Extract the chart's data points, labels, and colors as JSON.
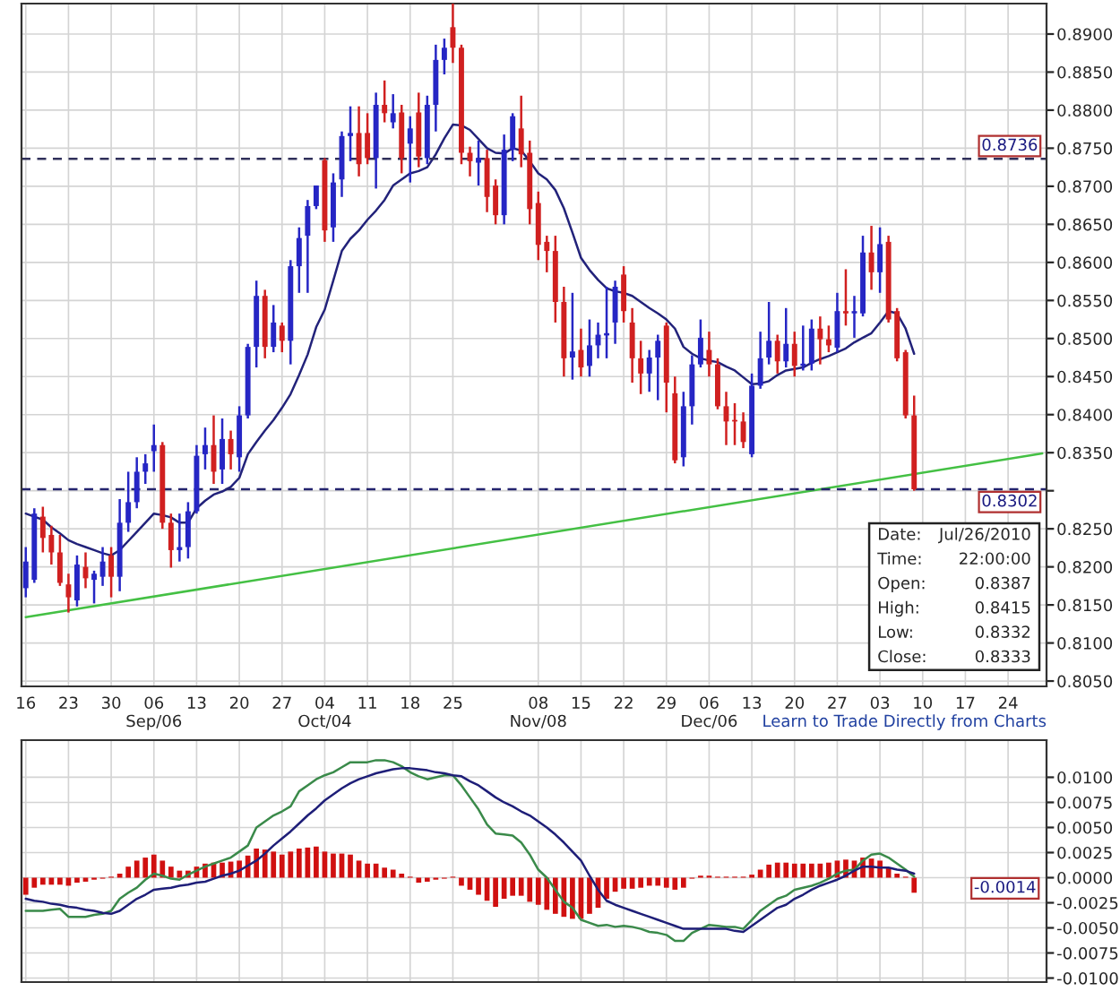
{
  "chart_data": [
    {
      "type": "candlestick",
      "categories": [
        "16",
        null,
        null,
        null,
        null,
        "23",
        null,
        null,
        null,
        null,
        "30",
        null,
        null,
        null,
        null,
        "06\nSep/06",
        null,
        null,
        null,
        null,
        "13",
        null,
        null,
        null,
        null,
        "20",
        null,
        null,
        null,
        null,
        "27",
        null,
        null,
        null,
        null,
        "04\nOct/04",
        null,
        null,
        null,
        null,
        "11",
        null,
        null,
        null,
        null,
        "18",
        null,
        null,
        null,
        null,
        "25",
        null,
        null,
        null,
        null,
        null,
        null,
        null,
        null,
        null,
        "08\nNov/08",
        null,
        null,
        null,
        null,
        "15",
        null,
        null,
        null,
        null,
        "22",
        null,
        null,
        null,
        null,
        "29",
        null,
        null,
        null,
        null,
        "06\nDec/06",
        null,
        null,
        null,
        null,
        "13",
        null,
        null,
        null,
        null,
        "20",
        null,
        null,
        null,
        null,
        "27",
        null,
        null,
        null,
        null,
        "03",
        null,
        null,
        null,
        null,
        "10",
        null,
        null,
        null,
        null,
        "17",
        null,
        null,
        null,
        null,
        "24",
        null,
        null,
        null,
        null
      ],
      "ohlc": [
        [
          0.8172,
          0.8226,
          0.816,
          0.8207
        ],
        [
          0.8183,
          0.8277,
          0.8179,
          0.827
        ],
        [
          0.8266,
          0.8279,
          0.8219,
          0.8238
        ],
        [
          0.8242,
          0.8254,
          0.8203,
          0.8219
        ],
        [
          0.8219,
          0.8242,
          0.8175,
          0.8179
        ],
        [
          0.8177,
          0.8191,
          0.814,
          0.816
        ],
        [
          0.8156,
          0.8215,
          0.8148,
          0.8203
        ],
        [
          0.82,
          0.8219,
          0.8172,
          0.8185
        ],
        [
          0.8183,
          0.8195,
          0.8152,
          0.8191
        ],
        [
          0.8187,
          0.8226,
          0.8175,
          0.8207
        ],
        [
          0.8215,
          0.8226,
          0.816,
          0.8187
        ],
        [
          0.8187,
          0.8289,
          0.8168,
          0.8258
        ],
        [
          0.8258,
          0.8325,
          0.8246,
          0.8285
        ],
        [
          0.8285,
          0.8344,
          0.8277,
          0.8325
        ],
        [
          0.8325,
          0.8348,
          0.8309,
          0.8336
        ],
        [
          0.8352,
          0.8387,
          0.8325,
          0.836
        ],
        [
          0.836,
          0.8364,
          0.825,
          0.8258
        ],
        [
          0.8258,
          0.827,
          0.8199,
          0.8222
        ],
        [
          0.8222,
          0.827,
          0.8207,
          0.8226
        ],
        [
          0.8226,
          0.8285,
          0.8211,
          0.8273
        ],
        [
          0.8273,
          0.836,
          0.827,
          0.8346
        ],
        [
          0.8348,
          0.8383,
          0.8328,
          0.836
        ],
        [
          0.836,
          0.8399,
          0.8309,
          0.8325
        ],
        [
          0.8328,
          0.8395,
          0.8309,
          0.8368
        ],
        [
          0.8368,
          0.8379,
          0.8328,
          0.8348
        ],
        [
          0.8344,
          0.8411,
          0.8325,
          0.8399
        ],
        [
          0.8399,
          0.8493,
          0.8395,
          0.8489
        ],
        [
          0.8489,
          0.8576,
          0.8462,
          0.8556
        ],
        [
          0.8556,
          0.8564,
          0.8474,
          0.8489
        ],
        [
          0.8489,
          0.8544,
          0.8482,
          0.8521
        ],
        [
          0.8517,
          0.8521,
          0.8482,
          0.8497
        ],
        [
          0.8497,
          0.8603,
          0.8466,
          0.8595
        ],
        [
          0.8595,
          0.8646,
          0.856,
          0.8632
        ],
        [
          0.8635,
          0.8682,
          0.856,
          0.8674
        ],
        [
          0.8674,
          0.8701,
          0.867,
          0.8701
        ],
        [
          0.8734,
          0.8737,
          0.8627,
          0.8642
        ],
        [
          0.8646,
          0.8717,
          0.8627,
          0.8705
        ],
        [
          0.8709,
          0.8772,
          0.8686,
          0.8766
        ],
        [
          0.8766,
          0.8805,
          0.8733,
          0.877
        ],
        [
          0.877,
          0.8805,
          0.8713,
          0.8729
        ],
        [
          0.877,
          0.8796,
          0.8729,
          0.8737
        ],
        [
          0.8737,
          0.8823,
          0.8697,
          0.8807
        ],
        [
          0.8807,
          0.8839,
          0.8784,
          0.8796
        ],
        [
          0.8784,
          0.8821,
          0.8776,
          0.8796
        ],
        [
          0.8797,
          0.8807,
          0.8717,
          0.8737
        ],
        [
          0.8756,
          0.8792,
          0.8705,
          0.8776
        ],
        [
          0.8797,
          0.8823,
          0.8725,
          0.8739
        ],
        [
          0.8737,
          0.8819,
          0.8729,
          0.8807
        ],
        [
          0.8807,
          0.8886,
          0.8772,
          0.8866
        ],
        [
          0.8866,
          0.8894,
          0.8847,
          0.8882
        ],
        [
          0.8909,
          0.8941,
          0.8862,
          0.8882
        ],
        [
          0.8882,
          0.8886,
          0.8729,
          0.8744
        ],
        [
          0.8744,
          0.8752,
          0.8713,
          0.8733
        ],
        [
          0.8731,
          0.876,
          0.8701,
          0.8737
        ],
        [
          0.8737,
          0.8748,
          0.8666,
          0.8686
        ],
        [
          0.8701,
          0.8709,
          0.865,
          0.8662
        ],
        [
          0.8662,
          0.8768,
          0.865,
          0.8748
        ],
        [
          0.8748,
          0.8796,
          0.8733,
          0.8792
        ],
        [
          0.8776,
          0.8819,
          0.8725,
          0.8742
        ],
        [
          0.8744,
          0.876,
          0.865,
          0.867
        ],
        [
          0.8678,
          0.8693,
          0.8603,
          0.8623
        ],
        [
          0.8627,
          0.8635,
          0.8587,
          0.8615
        ],
        [
          0.8615,
          0.8635,
          0.8521,
          0.8548
        ],
        [
          0.8548,
          0.8568,
          0.845,
          0.8474
        ],
        [
          0.8475,
          0.856,
          0.8446,
          0.8483
        ],
        [
          0.8485,
          0.8513,
          0.845,
          0.8462
        ],
        [
          0.8464,
          0.8525,
          0.845,
          0.8491
        ],
        [
          0.8491,
          0.8521,
          0.8474,
          0.8505
        ],
        [
          0.8504,
          0.8568,
          0.8474,
          0.8507
        ],
        [
          0.8521,
          0.8576,
          0.8493,
          0.8568
        ],
        [
          0.8584,
          0.8595,
          0.8521,
          0.8536
        ],
        [
          0.8521,
          0.854,
          0.8442,
          0.8474
        ],
        [
          0.8474,
          0.8497,
          0.8427,
          0.8454
        ],
        [
          0.8454,
          0.8485,
          0.843,
          0.8475
        ],
        [
          0.8475,
          0.8505,
          0.8419,
          0.8497
        ],
        [
          0.8517,
          0.8521,
          0.8403,
          0.8442
        ],
        [
          0.8428,
          0.845,
          0.8336,
          0.834
        ],
        [
          0.8344,
          0.843,
          0.8332,
          0.8411
        ],
        [
          0.8411,
          0.8478,
          0.8387,
          0.8466
        ],
        [
          0.8466,
          0.8525,
          0.8462,
          0.8501
        ],
        [
          0.8485,
          0.8509,
          0.845,
          0.8466
        ],
        [
          0.8466,
          0.8474,
          0.8407,
          0.8411
        ],
        [
          0.8411,
          0.843,
          0.836,
          0.8391
        ],
        [
          0.8393,
          0.8415,
          0.836,
          0.8391
        ],
        [
          0.8391,
          0.8403,
          0.8356,
          0.8364
        ],
        [
          0.8348,
          0.8454,
          0.8344,
          0.8438
        ],
        [
          0.8438,
          0.8509,
          0.8434,
          0.8474
        ],
        [
          0.8475,
          0.8548,
          0.8466,
          0.8497
        ],
        [
          0.8497,
          0.8505,
          0.8454,
          0.847
        ],
        [
          0.847,
          0.854,
          0.8462,
          0.8493
        ],
        [
          0.8493,
          0.8509,
          0.845,
          0.8464
        ],
        [
          0.8464,
          0.8517,
          0.8458,
          0.8467
        ],
        [
          0.8467,
          0.8525,
          0.8458,
          0.8513
        ],
        [
          0.8513,
          0.8529,
          0.8466,
          0.8499
        ],
        [
          0.8499,
          0.8517,
          0.8482,
          0.8491
        ],
        [
          0.8488,
          0.856,
          0.8482,
          0.8536
        ],
        [
          0.8536,
          0.8591,
          0.8517,
          0.8533
        ],
        [
          0.8533,
          0.8556,
          0.8501,
          0.8536
        ],
        [
          0.8533,
          0.8635,
          0.8529,
          0.8613
        ],
        [
          0.8613,
          0.8648,
          0.8564,
          0.8587
        ],
        [
          0.8587,
          0.8646,
          0.856,
          0.8624
        ],
        [
          0.8627,
          0.8635,
          0.8521,
          0.8525
        ],
        [
          0.8536,
          0.854,
          0.847,
          0.8474
        ],
        [
          0.8482,
          0.8485,
          0.8395,
          0.8399
        ],
        [
          0.8399,
          0.8425,
          0.83,
          0.8302
        ],
        null,
        null,
        null,
        null,
        null,
        null,
        null,
        null,
        null,
        null,
        null,
        null,
        null,
        null,
        null
      ],
      "colors": [
        "#2626c4",
        "#2626c4",
        "#d02020",
        "#d02020",
        "#d02020",
        "#d02020",
        "#2626c4",
        "#d02020",
        "#2626c4",
        "#2626c4",
        "#d02020",
        "#2626c4",
        "#2626c4",
        "#2626c4",
        "#2626c4",
        "#2626c4",
        "#d02020",
        "#d02020",
        "#2626c4",
        "#2626c4",
        "#2626c4",
        "#2626c4",
        "#d02020",
        "#2626c4",
        "#d02020",
        "#2626c4",
        "#2626c4",
        "#2626c4",
        "#d02020",
        "#2626c4",
        "#d02020",
        "#2626c4",
        "#2626c4",
        "#2626c4",
        "#2626c4",
        "#d02020",
        "#2626c4",
        "#2626c4",
        "#2626c4",
        "#d02020",
        "#d02020",
        "#2626c4",
        "#d02020",
        "#2626c4",
        "#d02020",
        "#2626c4",
        "#d02020",
        "#2626c4",
        "#2626c4",
        "#2626c4",
        "#d02020",
        "#d02020",
        "#d02020",
        "#2626c4",
        "#d02020",
        "#d02020",
        "#2626c4",
        "#2626c4",
        "#d02020",
        "#d02020",
        "#d02020",
        "#d02020",
        "#d02020",
        "#d02020",
        "#2626c4",
        "#d02020",
        "#2626c4",
        "#2626c4",
        "#2626c4",
        "#2626c4",
        "#d02020",
        "#d02020",
        "#d02020",
        "#2626c4",
        "#2626c4",
        "#d02020",
        "#d02020",
        "#2626c4",
        "#2626c4",
        "#2626c4",
        "#d02020",
        "#d02020",
        "#d02020",
        "#d02020",
        "#d02020",
        "#2626c4",
        "#2626c4",
        "#2626c4",
        "#d02020",
        "#2626c4",
        "#d02020",
        "#2626c4",
        "#2626c4",
        "#d02020",
        "#d02020",
        "#2626c4",
        "#d02020",
        "#2626c4",
        "#2626c4",
        "#d02020",
        "#2626c4",
        "#d02020",
        "#d02020",
        "#d02020",
        "#d02020",
        null,
        null,
        null,
        null,
        null,
        null,
        null,
        null,
        null,
        null,
        null,
        null,
        null,
        null,
        null
      ],
      "series": [
        {
          "type": "line",
          "color": "#22227a",
          "values": [
            0.827,
            0.8266,
            0.8262,
            0.8252,
            0.8244,
            0.8235,
            0.823,
            0.8226,
            0.8222,
            0.8218,
            0.8215,
            0.8222,
            0.8234,
            0.8246,
            0.8258,
            0.827,
            0.8268,
            0.8265,
            0.8258,
            0.8258,
            0.8277,
            0.8287,
            0.8295,
            0.8299,
            0.8305,
            0.8317,
            0.8348,
            0.8364,
            0.8379,
            0.8393,
            0.8409,
            0.8427,
            0.8452,
            0.8479,
            0.8515,
            0.8538,
            0.8576,
            0.8615,
            0.8631,
            0.8642,
            0.8656,
            0.8668,
            0.8682,
            0.8701,
            0.8709,
            0.8717,
            0.872,
            0.8725,
            0.8742,
            0.8763,
            0.8781,
            0.878,
            0.8774,
            0.8762,
            0.875,
            0.8744,
            0.8743,
            0.875,
            0.8747,
            0.8733,
            0.8717,
            0.8709,
            0.8695,
            0.8671,
            0.8639,
            0.8606,
            0.859,
            0.8577,
            0.8566,
            0.8562,
            0.856,
            0.8556,
            0.8548,
            0.854,
            0.8533,
            0.8525,
            0.8513,
            0.8489,
            0.848,
            0.8474,
            0.8471,
            0.8469,
            0.8463,
            0.8458,
            0.8449,
            0.844,
            0.8441,
            0.8444,
            0.8452,
            0.8458,
            0.846,
            0.8462,
            0.8468,
            0.8473,
            0.8477,
            0.8482,
            0.8487,
            0.8495,
            0.8501,
            0.8507,
            0.8521,
            0.8536,
            0.8533,
            0.8513,
            0.848,
            null,
            null,
            null,
            null,
            null,
            null,
            null,
            null,
            null,
            null,
            null,
            null,
            null,
            null,
            null
          ]
        },
        {
          "type": "line",
          "color": "#44c044",
          "values": [
            0.8134,
            null,
            null,
            null,
            null,
            null,
            null,
            null,
            null,
            null,
            null,
            null,
            null,
            null,
            null,
            null,
            null,
            null,
            null,
            null,
            null,
            null,
            null,
            null,
            null,
            null,
            null,
            null,
            null,
            null,
            null,
            null,
            null,
            null,
            null,
            null,
            null,
            null,
            null,
            null,
            null,
            null,
            null,
            null,
            null,
            null,
            null,
            null,
            null,
            null,
            null,
            null,
            null,
            null,
            null,
            null,
            null,
            null,
            null,
            null,
            null,
            null,
            null,
            null,
            null,
            null,
            null,
            null,
            null,
            null,
            null,
            null,
            null,
            null,
            null,
            null,
            null,
            null,
            null,
            null,
            null,
            null,
            null,
            null,
            null,
            null,
            null,
            null,
            null,
            null,
            null,
            null,
            null,
            null,
            null,
            null,
            null,
            null,
            null,
            null,
            null,
            null,
            null,
            null,
            null,
            null,
            null,
            null,
            null,
            null,
            null,
            null,
            null,
            null,
            null,
            null,
            null,
            null,
            null,
            0.8349
          ]
        }
      ],
      "ylim": [
        0.8043,
        0.894
      ],
      "yticks": [
        {
          "value": 0.805,
          "label": "0.8050"
        },
        {
          "value": 0.81,
          "label": "0.8100"
        },
        {
          "value": 0.815,
          "label": "0.8150"
        },
        {
          "value": 0.82,
          "label": "0.8200"
        },
        {
          "value": 0.825,
          "label": "0.8250"
        },
        {
          "value": 0.83,
          "label": null
        },
        {
          "value": 0.835,
          "label": "0.8350"
        },
        {
          "value": 0.84,
          "label": "0.8400"
        },
        {
          "value": 0.845,
          "label": "0.8450"
        },
        {
          "value": 0.85,
          "label": "0.8500"
        },
        {
          "value": 0.855,
          "label": "0.8550"
        },
        {
          "value": 0.86,
          "label": "0.8600"
        },
        {
          "value": 0.865,
          "label": "0.8650"
        },
        {
          "value": 0.87,
          "label": "0.8700"
        },
        {
          "value": 0.875,
          "label": "0.8750"
        },
        {
          "value": 0.88,
          "label": "0.8800"
        },
        {
          "value": 0.885,
          "label": "0.8850"
        },
        {
          "value": 0.89,
          "label": "0.8900"
        }
      ],
      "ref_lines": [
        {
          "axis": "y",
          "value": 0.8736,
          "label": "0.8736",
          "color": "#30305a",
          "line_style": "dashed"
        },
        {
          "axis": "y",
          "value": 0.8302,
          "label": "0.8302",
          "color": "#24246e",
          "line_style": "dashed"
        }
      ],
      "annotations": [
        "Date:",
        "Jul/26/2010",
        "Time:",
        "22:00:00",
        "Open:",
        "0.8387",
        "High:",
        "0.8415",
        "Low:",
        "0.8332",
        "Close:",
        "0.8333",
        "Learn to Trade Directly from Charts"
      ],
      "grid": true
    },
    {
      "type": "bar",
      "categories": [
        null,
        null,
        null,
        null,
        null,
        null,
        null,
        null,
        null,
        null,
        null,
        null,
        null,
        null,
        null,
        null,
        null,
        null,
        null,
        null,
        null,
        null,
        null,
        null,
        null,
        null,
        null,
        null,
        null,
        null,
        null,
        null,
        null,
        null,
        null,
        null,
        null,
        null,
        null,
        null,
        null,
        null,
        null,
        null,
        null,
        null,
        null,
        null,
        null,
        null,
        null,
        null,
        null,
        null,
        null,
        null,
        null,
        null,
        null,
        null,
        null,
        null,
        null,
        null,
        null,
        null,
        null,
        null,
        null,
        null,
        null,
        null,
        null,
        null,
        null,
        null,
        null,
        null,
        null,
        null,
        null,
        null,
        null,
        null,
        null,
        null,
        null,
        null,
        null,
        null,
        null,
        null,
        null,
        null,
        null,
        null,
        null,
        null,
        null,
        null,
        null,
        null,
        null,
        null,
        null,
        null,
        null,
        null,
        null,
        null,
        null,
        null,
        null,
        null,
        null,
        null,
        null,
        null,
        null,
        null
      ],
      "series": [
        {
          "type": "bar",
          "color": "#d01010",
          "values": [
            -0.0017,
            -0.001,
            -0.0007,
            -0.0007,
            -0.0007,
            -0.0008,
            -0.0005,
            -0.0004,
            -0.0002,
            -0.0001,
            0.0001,
            0.0004,
            0.0011,
            0.0017,
            0.002,
            0.0023,
            0.0017,
            0.0011,
            0.0007,
            0.0007,
            0.0011,
            0.0014,
            0.0015,
            0.0015,
            0.0016,
            0.0017,
            0.0022,
            0.0029,
            0.0028,
            0.0026,
            0.0023,
            0.0026,
            0.0029,
            0.003,
            0.0031,
            0.0026,
            0.0024,
            0.0024,
            0.0023,
            0.0017,
            0.0014,
            0.0014,
            0.001,
            0.0008,
            0.0004,
            0.0001,
            -0.0005,
            -0.0004,
            -0.0002,
            -0.0001,
            0.0001,
            -0.0008,
            -0.0012,
            -0.0017,
            -0.0023,
            -0.0029,
            -0.0021,
            -0.0018,
            -0.0018,
            -0.0024,
            -0.0027,
            -0.0032,
            -0.0036,
            -0.0039,
            -0.0041,
            -0.0041,
            -0.0036,
            -0.003,
            -0.0021,
            -0.0014,
            -0.0011,
            -0.0011,
            -0.001,
            -0.0008,
            -0.0008,
            -0.001,
            -0.0012,
            -0.001,
            -0.0001,
            0.0002,
            0.0002,
            0.0001,
            0.0001,
            0.0001,
            0.0001,
            0.0003,
            0.0008,
            0.0013,
            0.0015,
            0.0015,
            0.0014,
            0.0014,
            0.0014,
            0.0014,
            0.0015,
            0.0017,
            0.0018,
            0.0017,
            0.002,
            0.0019,
            0.0017,
            0.001,
            0.0004,
            0.0001,
            -0.0015,
            null,
            null,
            null,
            null,
            null,
            null,
            null,
            null,
            null,
            null,
            null,
            null,
            null,
            null,
            null
          ]
        },
        {
          "type": "line",
          "color": "#3a8a4a",
          "values": [
            -0.0033,
            -0.0033,
            -0.0033,
            -0.0032,
            -0.0031,
            -0.0039,
            -0.0039,
            -0.0039,
            -0.0037,
            -0.0036,
            -0.0033,
            -0.0021,
            -0.0015,
            -0.001,
            -0.0002,
            0.0004,
            0.0002,
            -0.0001,
            -0.0002,
            0.0003,
            0.0007,
            0.0011,
            0.0014,
            0.0017,
            0.002,
            0.0026,
            0.0032,
            0.005,
            0.0056,
            0.0062,
            0.0066,
            0.0071,
            0.0086,
            0.0092,
            0.0098,
            0.0102,
            0.0105,
            0.011,
            0.0115,
            0.0115,
            0.0115,
            0.0117,
            0.0117,
            0.0115,
            0.0111,
            0.0105,
            0.0101,
            0.0098,
            0.01,
            0.0102,
            0.0102,
            0.0092,
            0.008,
            0.0068,
            0.0053,
            0.0044,
            0.0043,
            0.0042,
            0.0035,
            0.0023,
            0.0008,
            0.0,
            -0.0012,
            -0.0024,
            -0.003,
            -0.0042,
            -0.0045,
            -0.0048,
            -0.0047,
            -0.0049,
            -0.0048,
            -0.0049,
            -0.0051,
            -0.0054,
            -0.0055,
            -0.0057,
            -0.0063,
            -0.0063,
            -0.0055,
            -0.0051,
            -0.0047,
            -0.0048,
            -0.0049,
            -0.0049,
            -0.0051,
            -0.0042,
            -0.0033,
            -0.0027,
            -0.0021,
            -0.0018,
            -0.0012,
            -0.001,
            -0.0008,
            -0.0005,
            -0.0001,
            0.0004,
            0.0007,
            0.0008,
            0.0017,
            0.0023,
            0.0024,
            0.002,
            0.0014,
            0.0008,
            0.0001,
            null,
            null,
            null,
            null,
            null,
            null,
            null,
            null,
            null,
            null,
            null,
            null,
            null,
            null,
            null
          ]
        },
        {
          "type": "line",
          "color": "#1e1e78",
          "values": [
            -0.0021,
            -0.0023,
            -0.0024,
            -0.0026,
            -0.0027,
            -0.0029,
            -0.003,
            -0.0032,
            -0.0033,
            -0.0035,
            -0.0036,
            -0.0033,
            -0.0027,
            -0.0021,
            -0.0017,
            -0.0012,
            -0.0011,
            -0.001,
            -0.0008,
            -0.0007,
            -0.0005,
            -0.0004,
            -0.0001,
            0.0002,
            0.0004,
            0.0007,
            0.0012,
            0.0017,
            0.0024,
            0.0032,
            0.0039,
            0.0046,
            0.0054,
            0.0062,
            0.0069,
            0.0077,
            0.0083,
            0.0089,
            0.0094,
            0.0098,
            0.0101,
            0.0104,
            0.0106,
            0.0108,
            0.0109,
            0.0109,
            0.0108,
            0.0107,
            0.0105,
            0.0104,
            0.0102,
            0.0101,
            0.0096,
            0.0092,
            0.0086,
            0.008,
            0.0075,
            0.0071,
            0.0066,
            0.0062,
            0.0056,
            0.005,
            0.0043,
            0.0035,
            0.0026,
            0.0017,
            0.0002,
            -0.0012,
            -0.0023,
            -0.0027,
            -0.003,
            -0.0033,
            -0.0036,
            -0.0039,
            -0.0042,
            -0.0045,
            -0.0048,
            -0.0051,
            -0.0051,
            -0.0051,
            -0.0051,
            -0.0051,
            -0.0051,
            -0.0053,
            -0.0054,
            -0.0048,
            -0.0042,
            -0.0036,
            -0.003,
            -0.0027,
            -0.0021,
            -0.0017,
            -0.0012,
            -0.0008,
            -0.0005,
            -0.0002,
            0.0002,
            0.0007,
            0.0011,
            0.0011,
            0.001,
            0.001,
            0.0008,
            0.0007,
            0.0004,
            null,
            null,
            null,
            null,
            null,
            null,
            null,
            null,
            null,
            null,
            null,
            null,
            null,
            null,
            null
          ]
        }
      ],
      "ylim": [
        -0.0104,
        0.0137
      ],
      "yticks": [
        {
          "value": 0.01,
          "label": "0.0100"
        },
        {
          "value": 0.0075,
          "label": "0.0075"
        },
        {
          "value": 0.005,
          "label": "0.0050"
        },
        {
          "value": 0.0025,
          "label": "0.0025"
        },
        {
          "value": 0,
          "label": "0.0000"
        },
        {
          "value": -0.0025,
          "label": "-0.0025"
        },
        {
          "value": -0.005,
          "label": "-0.0050"
        },
        {
          "value": -0.0075,
          "label": "-0.0075"
        },
        {
          "value": -0.01,
          "label": "-0.0100"
        }
      ],
      "annotations": [
        "-0.0014"
      ],
      "grid": true,
      "tick_labels": "y"
    }
  ]
}
